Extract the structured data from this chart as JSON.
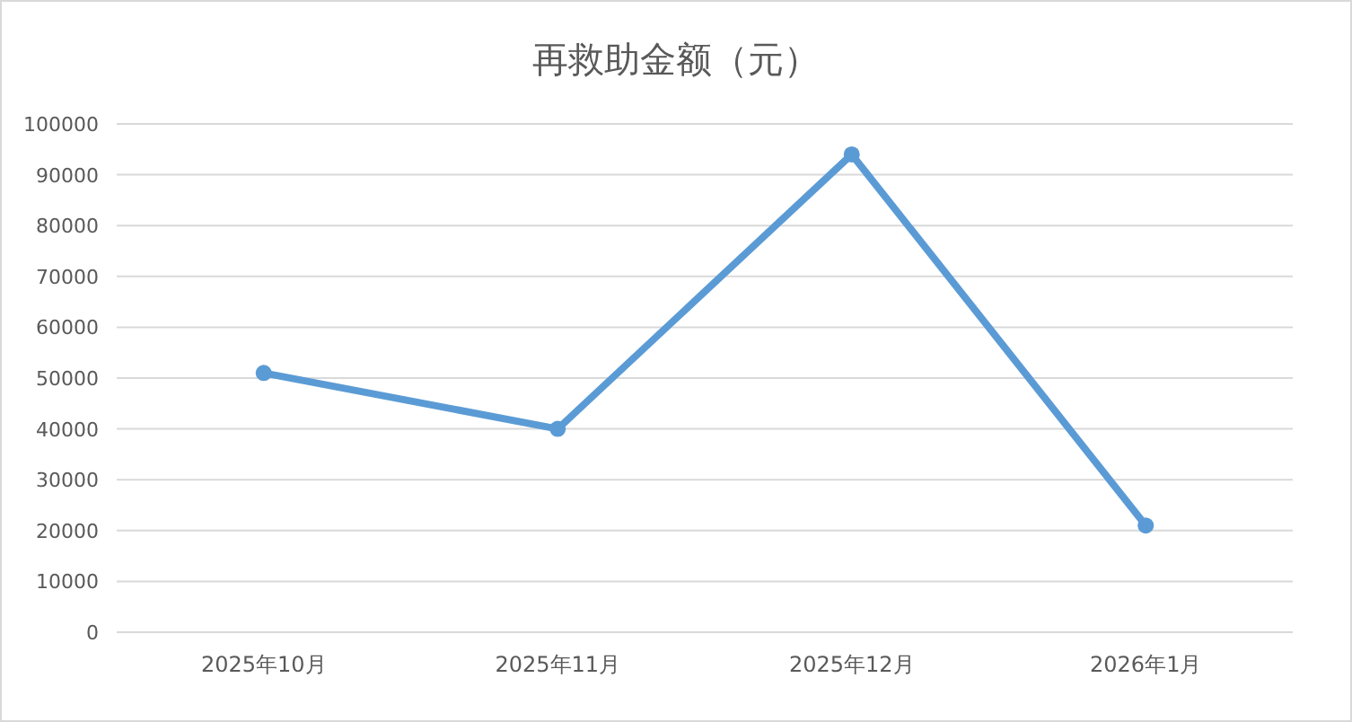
{
  "chart_data": {
    "type": "line",
    "title": "再救助金额（元）",
    "categories": [
      "2025年10月",
      "2025年11月",
      "2025年12月",
      "2026年1月"
    ],
    "series": [
      {
        "color": "#5b9bd5",
        "values": [
          51000,
          40000,
          94000,
          21000
        ]
      }
    ],
    "ylim": [
      0,
      100000
    ],
    "yticks": [
      0,
      10000,
      20000,
      30000,
      40000,
      50000,
      60000,
      70000,
      80000,
      90000,
      100000
    ],
    "grid": "y",
    "marker": "circle",
    "line_style": "solid"
  }
}
